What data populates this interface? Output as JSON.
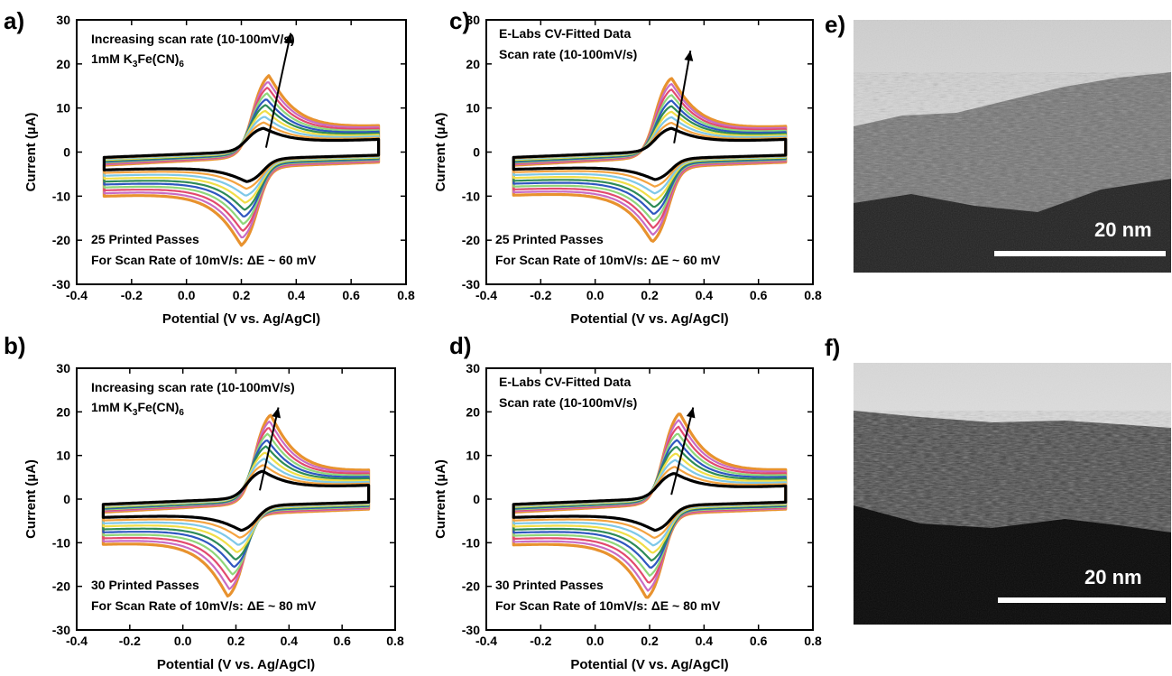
{
  "chart_data": [
    {
      "panel": "a)",
      "type": "line",
      "xlabel": "Potential (V vs. Ag/AgCl)",
      "ylabel": "Current (µA)",
      "xlim": [
        -0.4,
        0.8
      ],
      "ylim": [
        -30,
        30
      ],
      "xticks": [
        "-0.4",
        "-0.2",
        "0.0",
        "0.2",
        "0.4",
        "0.6",
        "0.8"
      ],
      "yticks": [
        "30",
        "20",
        "10",
        "0",
        "-10",
        "-20",
        "-30"
      ],
      "annotations": [
        "Increasing scan rate (10-100mV/s)",
        "1mM K",
        "3",
        "Fe(CN)",
        "6",
        "25 Printed Passes",
        "For Scan Rate of 10mV/s: ΔE ~ 60 mV"
      ],
      "scan_rates_mV_s": [
        10,
        20,
        30,
        40,
        50,
        60,
        70,
        80,
        90,
        100
      ],
      "E_range": [
        -0.3,
        0.7
      ],
      "anodic_peak": {
        "E": [
          0.28,
          0.3
        ],
        "i": [
          5.5,
          19.5
        ]
      },
      "cathodic_peak": {
        "E": [
          0.22,
          0.2
        ],
        "i": [
          -5.5,
          -18.8
        ]
      },
      "arrow": {
        "from": [
          0.29,
          1
        ],
        "to": [
          0.38,
          27
        ]
      },
      "series_colors": [
        "#000000",
        "#f4a340",
        "#7ec8e8",
        "#f0de48",
        "#2e8b57",
        "#2f57c0",
        "#8fd67a",
        "#e24a6e",
        "#c86cc4",
        "#e8922e"
      ]
    },
    {
      "panel": "b)",
      "type": "line",
      "xlabel": "Potential (V vs. Ag/AgCl)",
      "ylabel": "Current (µA)",
      "xlim": [
        -0.4,
        0.8
      ],
      "ylim": [
        -30,
        30
      ],
      "xticks": [
        "-0.4",
        "-0.2",
        "0.0",
        "0.2",
        "0.4",
        "0.6",
        "0.8"
      ],
      "yticks": [
        "30",
        "20",
        "10",
        "0",
        "-10",
        "-20",
        "-30"
      ],
      "annotations": [
        "Increasing scan rate (10-100mV/s)",
        "1mM K",
        "3",
        "Fe(CN)",
        "6",
        "30 Printed Passes",
        "For Scan Rate of 10mV/s: ΔE ~ 80 mV"
      ],
      "scan_rates_mV_s": [
        10,
        20,
        30,
        40,
        50,
        60,
        70,
        80,
        90,
        100
      ],
      "E_range": [
        -0.3,
        0.7
      ],
      "anodic_peak": {
        "E": [
          0.3,
          0.33
        ],
        "i": [
          6.5,
          21.5
        ]
      },
      "cathodic_peak": {
        "E": [
          0.22,
          0.17
        ],
        "i": [
          -6,
          -20
        ]
      },
      "arrow": {
        "from": [
          0.29,
          2
        ],
        "to": [
          0.36,
          21
        ]
      },
      "series_colors": [
        "#000000",
        "#f4a340",
        "#7ec8e8",
        "#f0de48",
        "#2e8b57",
        "#2f57c0",
        "#8fd67a",
        "#e24a6e",
        "#c86cc4",
        "#e8922e"
      ]
    },
    {
      "panel": "c)",
      "type": "line",
      "xlabel": "Potential (V vs. Ag/AgCl)",
      "ylabel": "Current (µA)",
      "xlim": [
        -0.4,
        0.8
      ],
      "ylim": [
        -30,
        30
      ],
      "xticks": [
        "-0.4",
        "-0.2",
        "0.0",
        "0.2",
        "0.4",
        "0.6",
        "0.8"
      ],
      "yticks": [
        "30",
        "20",
        "10",
        "0",
        "-10",
        "-20",
        "-30"
      ],
      "annotations": [
        "E-Labs CV-Fitted Data",
        "Scan rate (10-100mV/s)",
        "25 Printed Passes",
        "For Scan Rate of 10mV/s: ΔE ~ 60 mV"
      ],
      "scan_rates_mV_s": [
        10,
        20,
        30,
        40,
        50,
        60,
        70,
        80,
        90,
        100
      ],
      "E_range": [
        -0.3,
        0.7
      ],
      "anodic_peak": {
        "E": [
          0.28,
          0.28
        ],
        "i": [
          5.5,
          19
        ]
      },
      "cathodic_peak": {
        "E": [
          0.22,
          0.21
        ],
        "i": [
          -5,
          -18
        ]
      },
      "arrow": {
        "from": [
          0.29,
          2
        ],
        "to": [
          0.35,
          23
        ]
      },
      "series_colors": [
        "#000000",
        "#f4a340",
        "#7ec8e8",
        "#f0de48",
        "#2e8b57",
        "#2f57c0",
        "#8fd67a",
        "#e24a6e",
        "#c86cc4",
        "#e8922e"
      ]
    },
    {
      "panel": "d)",
      "type": "line",
      "xlabel": "Potential (V vs. Ag/AgCl)",
      "ylabel": "Current (µA)",
      "xlim": [
        -0.4,
        0.8
      ],
      "ylim": [
        -30,
        30
      ],
      "xticks": [
        "-0.4",
        "-0.2",
        "0.0",
        "0.2",
        "0.4",
        "0.6",
        "0.8"
      ],
      "yticks": [
        "30",
        "20",
        "10",
        "0",
        "-10",
        "-20",
        "-30"
      ],
      "annotations": [
        "E-Labs CV-Fitted Data",
        "Scan rate (10-100mV/s)",
        "30 Printed Passes",
        "For Scan Rate of 10mV/s: ΔE ~ 80 mV"
      ],
      "scan_rates_mV_s": [
        10,
        20,
        30,
        40,
        50,
        60,
        70,
        80,
        90,
        100
      ],
      "E_range": [
        -0.3,
        0.7
      ],
      "anodic_peak": {
        "E": [
          0.29,
          0.31
        ],
        "i": [
          6,
          22
        ]
      },
      "cathodic_peak": {
        "E": [
          0.22,
          0.19
        ],
        "i": [
          -6,
          -20.5
        ]
      },
      "arrow": {
        "from": [
          0.28,
          1
        ],
        "to": [
          0.36,
          21
        ]
      },
      "series_colors": [
        "#000000",
        "#f4a340",
        "#7ec8e8",
        "#f0de48",
        "#2e8b57",
        "#2f57c0",
        "#8fd67a",
        "#e24a6e",
        "#c86cc4",
        "#e8922e"
      ]
    }
  ],
  "micrographs": [
    {
      "panel": "e)",
      "scale_bar_label": "20 nm"
    },
    {
      "panel": "f)",
      "scale_bar_label": "20 nm"
    }
  ]
}
